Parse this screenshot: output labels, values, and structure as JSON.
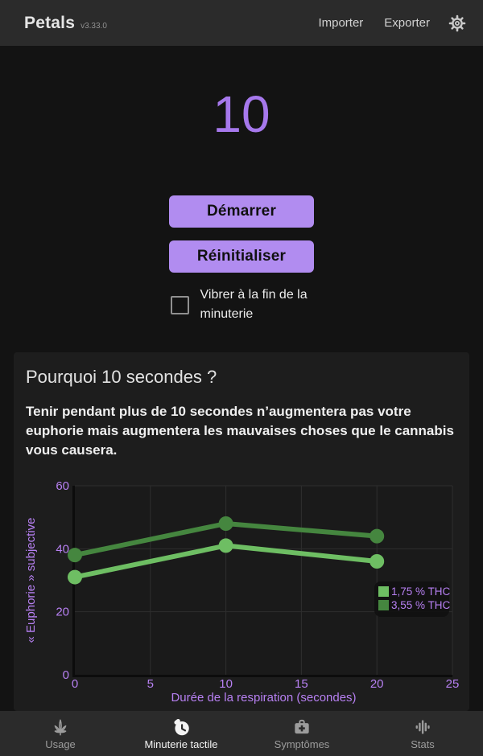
{
  "app": {
    "title": "Petals",
    "version": "v3.33.0"
  },
  "header": {
    "import_label": "Importer",
    "export_label": "Exporter",
    "settings_icon": "gear-icon"
  },
  "timer": {
    "value": "10",
    "start_label": "Démarrer",
    "reset_label": "Réinitialiser",
    "vibrate_label": "Vibrer à la fin de la minuterie",
    "vibrate_checked": false
  },
  "info_card": {
    "title": "Pourquoi 10 secondes ?",
    "body": "Tenir pendant plus de 10 secondes n’augmentera pas votre euphorie mais augmentera les mauvaises choses que le cannabis vous causera."
  },
  "chart_data": {
    "type": "line",
    "x": [
      0,
      10,
      20
    ],
    "series": [
      {
        "name": "1,75 % THC",
        "color": "#6ebe63",
        "values": [
          31,
          41,
          36
        ]
      },
      {
        "name": "3,55 % THC",
        "color": "#45863f",
        "values": [
          38,
          48,
          44
        ]
      }
    ],
    "xlabel": "Durée de la respiration (secondes)",
    "ylabel": "« Euphorie » subjective",
    "xlim": [
      0,
      25
    ],
    "ylim": [
      0,
      60
    ],
    "xticks": [
      0,
      5,
      10,
      15,
      20,
      25
    ],
    "yticks": [
      0,
      20,
      40,
      60
    ],
    "grid": true,
    "legend_position": "bottom-right",
    "text_color": "#b780f2",
    "plot_bg": "#1a1a1a",
    "grid_color": "#2e2e2e",
    "axis_color": "#0c0c0c",
    "legend_bg": "#101010"
  },
  "nav": {
    "items": [
      {
        "label": "Usage",
        "icon": "cannabis-leaf-icon",
        "active": false
      },
      {
        "label": "Minuterie tactile",
        "icon": "timer-icon",
        "active": true
      },
      {
        "label": "Symptômes",
        "icon": "first-aid-kit-icon",
        "active": false
      },
      {
        "label": "Stats",
        "icon": "equalizer-icon",
        "active": false
      }
    ]
  },
  "colors": {
    "accent_purple": "#a678ec",
    "button_purple": "#b18cf0",
    "chart_text_purple": "#b780f2",
    "series_light_green": "#6ebe63",
    "series_dark_green": "#45863f",
    "page_bg": "#131313",
    "bar_bg": "#2b2b2b",
    "card_bg": "#1d1d1d"
  }
}
